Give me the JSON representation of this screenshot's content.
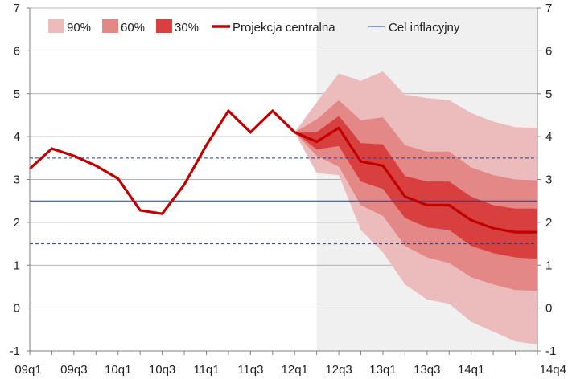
{
  "chart_data": {
    "type": "line",
    "title": "",
    "xlabel": "",
    "ylabel": "",
    "ylim": [
      -1,
      7
    ],
    "y_ticks": [
      -1,
      0,
      1,
      2,
      3,
      4,
      5,
      6,
      7
    ],
    "x_tick_labels": [
      "09q1",
      "09q3",
      "10q1",
      "10q3",
      "11q1",
      "11q3",
      "12q1",
      "12q3",
      "13q1",
      "13q3",
      "14q1",
      "14q4"
    ],
    "quarters": [
      "09q1",
      "09q2",
      "09q3",
      "09q4",
      "10q1",
      "10q2",
      "10q3",
      "10q4",
      "11q1",
      "11q2",
      "11q3",
      "11q4",
      "12q1",
      "12q2",
      "12q3",
      "12q4",
      "13q1",
      "13q2",
      "13q3",
      "13q4",
      "14q1",
      "14q2",
      "14q3",
      "14q4"
    ],
    "projection_start": "12q2",
    "grid": "horizontal",
    "legend_position": "top-left",
    "legend": [
      "90%",
      "60%",
      "30%",
      "Projekcja centralna",
      "Cel inflacyjny"
    ],
    "inflation_target": 2.5,
    "tolerance_band": [
      1.5,
      3.5
    ],
    "series": [
      {
        "name": "Projekcja centralna",
        "values": [
          3.25,
          3.72,
          3.55,
          3.32,
          3.02,
          2.28,
          2.2,
          2.88,
          3.8,
          4.6,
          4.1,
          4.6,
          4.1,
          3.88,
          4.2,
          3.42,
          3.32,
          2.6,
          2.4,
          2.4,
          2.05,
          1.86,
          1.77,
          1.77
        ]
      }
    ],
    "fan": {
      "quarters": [
        "12q1",
        "12q2",
        "12q3",
        "12q4",
        "13q1",
        "13q2",
        "13q3",
        "13q4",
        "14q1",
        "14q2",
        "14q3",
        "14q4"
      ],
      "band_90_upper": [
        4.1,
        4.8,
        5.47,
        5.3,
        5.52,
        4.98,
        4.9,
        4.85,
        4.55,
        4.35,
        4.22,
        4.2
      ],
      "band_90_lower": [
        4.1,
        3.15,
        3.1,
        1.82,
        1.3,
        0.55,
        0.2,
        0.1,
        -0.32,
        -0.55,
        -0.78,
        -0.85
      ],
      "band_60_upper": [
        4.1,
        4.4,
        4.85,
        4.38,
        4.45,
        3.8,
        3.65,
        3.65,
        3.28,
        3.1,
        3.0,
        2.98
      ],
      "band_60_lower": [
        4.1,
        3.55,
        3.3,
        2.4,
        2.15,
        1.45,
        1.18,
        1.05,
        0.72,
        0.55,
        0.42,
        0.4
      ],
      "band_30_upper": [
        4.1,
        4.1,
        4.48,
        3.85,
        3.82,
        3.08,
        2.95,
        2.95,
        2.6,
        2.4,
        2.32,
        2.32
      ],
      "band_30_lower": [
        4.1,
        3.7,
        3.78,
        2.95,
        2.78,
        2.1,
        1.88,
        1.82,
        1.45,
        1.28,
        1.18,
        1.15
      ]
    },
    "colors": {
      "band_90": "#ecbcbc",
      "band_60": "#e38787",
      "band_30": "#d84040",
      "central": "#c00000",
      "target": "#1f3f8f",
      "projection_bg": "#f0f0f0",
      "grid": "#9a9a9a"
    }
  }
}
